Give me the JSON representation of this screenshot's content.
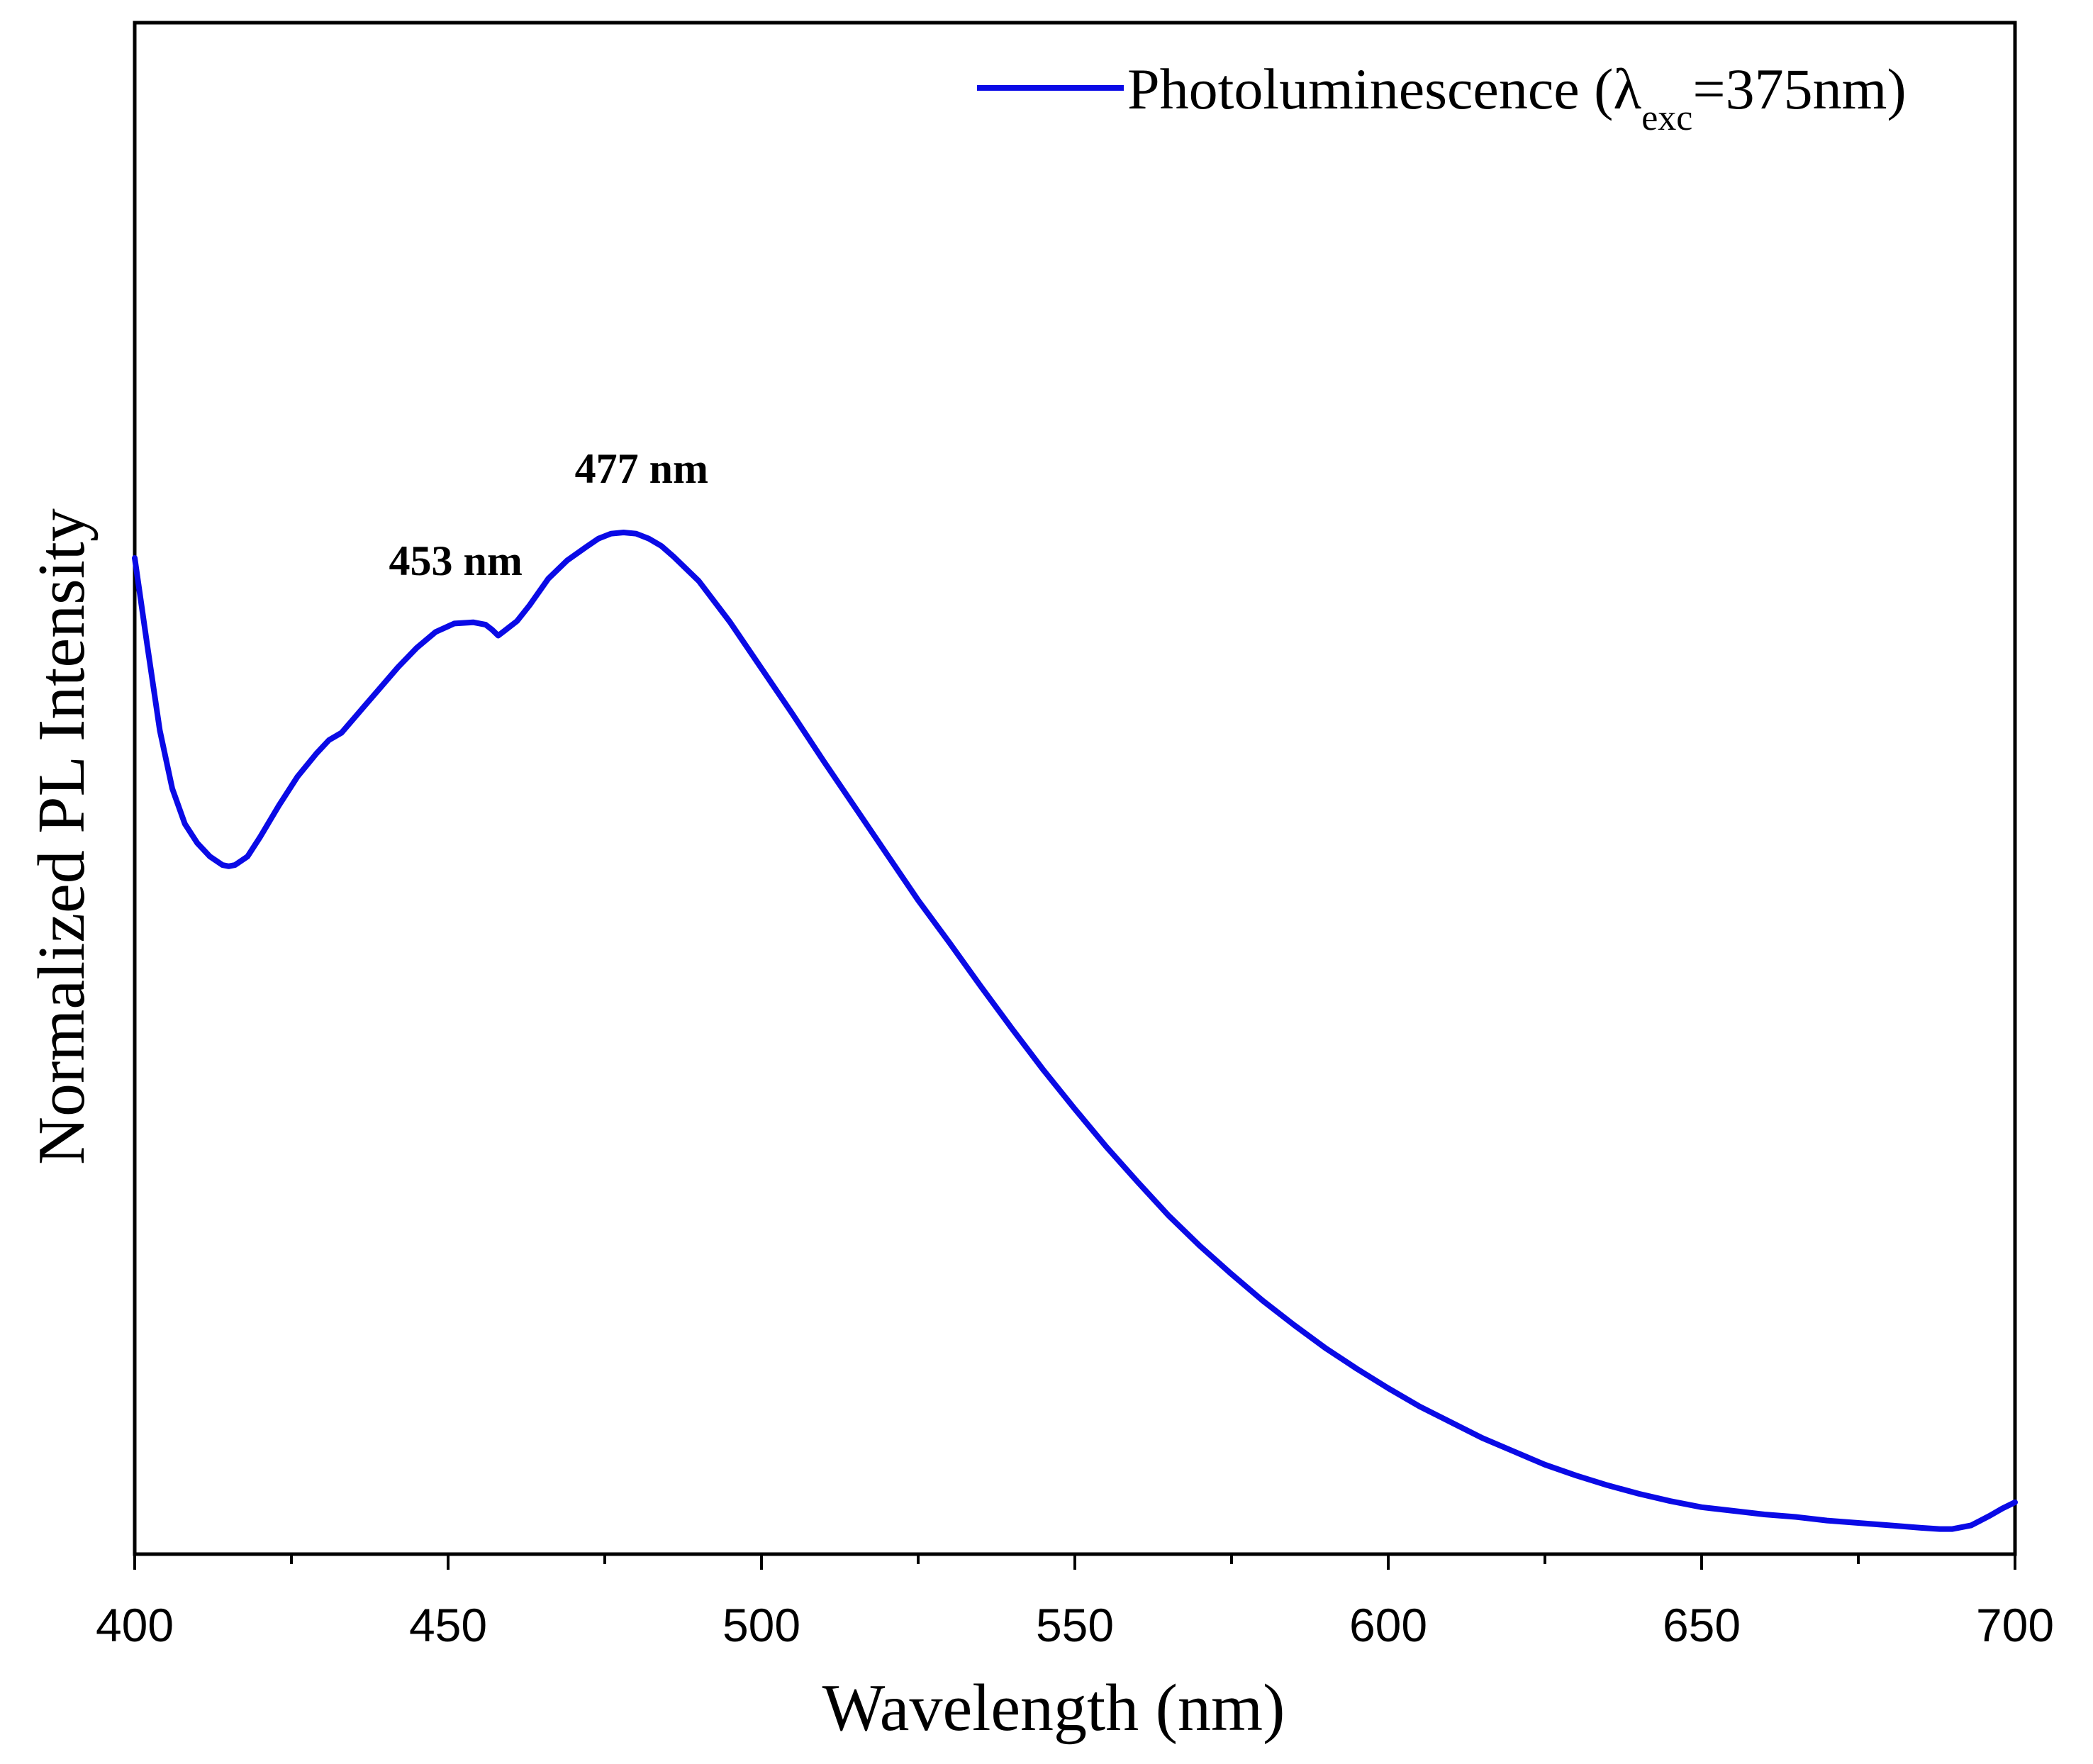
{
  "chart_data": {
    "type": "line",
    "title": "",
    "xlabel": "Wavelength (nm)",
    "ylabel": "Normalized PL Intensity",
    "xlim": [
      400,
      700
    ],
    "ylim": [
      0,
      1
    ],
    "xticks": [
      400,
      450,
      500,
      550,
      600,
      650,
      700
    ],
    "xtick_labels": [
      "400",
      "450",
      "500",
      "550",
      "600",
      "650",
      "700"
    ],
    "minor_xtick_step": 25,
    "grid": false,
    "legend": {
      "position": "top-right",
      "main": "Photoluminescence (λ",
      "sub": "exc",
      "suffix": "=375nm)"
    },
    "series": [
      {
        "name": "Photoluminescence (λexc=375nm)",
        "color": "#0a0ae6",
        "x": [
          400,
          402,
          404,
          406,
          408,
          410,
          412,
          414,
          415,
          416,
          418,
          420,
          423,
          426,
          429,
          431,
          433,
          436,
          439,
          442,
          445,
          448,
          451,
          454,
          456,
          457,
          458,
          459,
          461,
          463,
          466,
          469,
          472,
          474,
          476,
          478,
          480,
          482,
          484,
          486,
          490,
          495,
          500,
          505,
          510,
          515,
          520,
          525,
          530,
          535,
          540,
          545,
          550,
          555,
          560,
          565,
          570,
          575,
          580,
          585,
          590,
          595,
          600,
          605,
          610,
          615,
          620,
          625,
          630,
          635,
          640,
          645,
          650,
          655,
          660,
          665,
          670,
          675,
          680,
          685,
          688,
          690,
          693,
          696,
          698,
          700
        ],
        "y": [
          0.802,
          0.73,
          0.66,
          0.612,
          0.583,
          0.567,
          0.556,
          0.549,
          0.548,
          0.549,
          0.556,
          0.572,
          0.598,
          0.622,
          0.641,
          0.652,
          0.658,
          0.676,
          0.694,
          0.712,
          0.728,
          0.741,
          0.748,
          0.749,
          0.747,
          0.743,
          0.738,
          0.742,
          0.75,
          0.763,
          0.785,
          0.8,
          0.811,
          0.818,
          0.822,
          0.823,
          0.822,
          0.818,
          0.812,
          0.803,
          0.783,
          0.749,
          0.711,
          0.673,
          0.634,
          0.596,
          0.558,
          0.52,
          0.485,
          0.449,
          0.414,
          0.38,
          0.348,
          0.317,
          0.288,
          0.26,
          0.235,
          0.212,
          0.19,
          0.17,
          0.151,
          0.134,
          0.118,
          0.103,
          0.09,
          0.077,
          0.066,
          0.055,
          0.046,
          0.038,
          0.031,
          0.025,
          0.02,
          0.017,
          0.014,
          0.012,
          0.009,
          0.007,
          0.005,
          0.003,
          0.002,
          0.002,
          0.005,
          0.013,
          0.019,
          0.024
        ]
      }
    ],
    "annotations": [
      {
        "text": "453 nm",
        "x": 453,
        "y": 0.75
      },
      {
        "text": "477 nm",
        "x": 477,
        "y": 0.823
      }
    ]
  }
}
